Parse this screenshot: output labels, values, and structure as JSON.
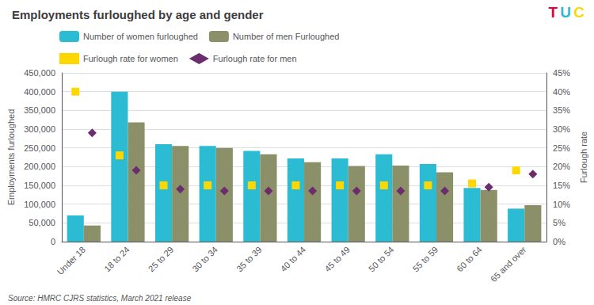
{
  "chart_data": {
    "type": "bar",
    "title": "Employments furloughed by age and gender",
    "subtitle": "Source: HMRC CJRS statistics, March 2021 release",
    "annotations": [
      {
        "text": "T",
        "color": "#E8003D"
      },
      {
        "text": "U",
        "color": "#2BBCD4"
      },
      {
        "text": "C",
        "color": "#FFD700"
      }
    ],
    "categories": [
      "Under 18",
      "18 to 24",
      "25 to 29",
      "30 to 34",
      "35 to 39",
      "40 to 44",
      "45 to 49",
      "50 to 54",
      "55 to 59",
      "60 to 64",
      "65 and over"
    ],
    "series": [
      {
        "name": "Number of women furloughed",
        "type": "bar",
        "color": "#2BBCD4",
        "values": [
          70000,
          400000,
          260000,
          255000,
          242000,
          222000,
          222000,
          233000,
          207000,
          143000,
          88000
        ]
      },
      {
        "name": "Number of men Furloughed",
        "type": "bar",
        "color": "#8B9069",
        "values": [
          43000,
          318000,
          255000,
          250000,
          233000,
          212000,
          202000,
          203000,
          185000,
          138000,
          97000
        ]
      },
      {
        "name": "Furlough rate for women",
        "type": "scatter",
        "axis": "y2",
        "marker": "square",
        "color": "#FFD700",
        "values": [
          0.4,
          0.23,
          0.15,
          0.15,
          0.15,
          0.15,
          0.15,
          0.15,
          0.15,
          0.155,
          0.19
        ]
      },
      {
        "name": "Furlough rate for men",
        "type": "scatter",
        "axis": "y2",
        "marker": "diamond",
        "color": "#6B2D6B",
        "values": [
          0.29,
          0.19,
          0.14,
          0.135,
          0.135,
          0.135,
          0.135,
          0.135,
          0.135,
          0.145,
          0.18
        ]
      }
    ],
    "ylabel": "Employments furloughed",
    "y2label": "Furlough rate",
    "ylim": [
      0,
      450000
    ],
    "yticks": [
      0,
      {
        "value": 50000,
        "label": "50,000"
      },
      {
        "value": 100000,
        "label": "100,000"
      },
      {
        "value": 150000,
        "label": "150,000"
      },
      {
        "value": 200000,
        "label": "200,000"
      },
      {
        "value": 250000,
        "label": "250,000"
      },
      {
        "value": 300000,
        "label": "300,000"
      },
      {
        "value": 350000,
        "label": "350,000"
      },
      {
        "value": 400000,
        "label": "400,000"
      },
      {
        "value": 450000,
        "label": "450,000"
      }
    ],
    "y2lim": [
      0,
      0.45
    ],
    "y2ticks": [
      {
        "value": 0,
        "label": "0%"
      },
      {
        "value": 0.05,
        "label": "5%"
      },
      {
        "value": 0.1,
        "label": "10%"
      },
      {
        "value": 0.15,
        "label": "15%"
      },
      {
        "value": 0.2,
        "label": "20%"
      },
      {
        "value": 0.25,
        "label": "25%"
      },
      {
        "value": 0.3,
        "label": "30%"
      },
      {
        "value": 0.35,
        "label": "35%"
      },
      {
        "value": 0.4,
        "label": "40%"
      },
      {
        "value": 0.45,
        "label": "45%"
      }
    ],
    "grid": true,
    "legend": "top"
  }
}
